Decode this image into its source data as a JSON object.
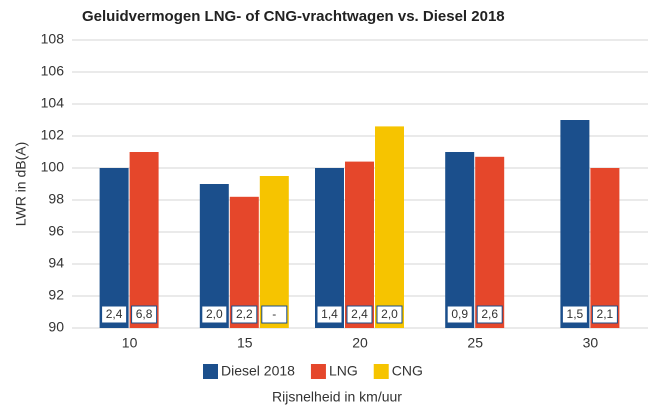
{
  "chart_data": {
    "type": "bar",
    "title": "Geluidvermogen LNG- of CNG-vrachtwagen vs. Diesel 2018",
    "y_label": "LWR in dB(A)",
    "x_label": "Rijsnelheid in km/uur",
    "categories": [
      "10",
      "15",
      "20",
      "25",
      "30"
    ],
    "series": [
      {
        "name": "Diesel 2018",
        "color": "#1b4f8c",
        "values": [
          100,
          99,
          100,
          101,
          103
        ],
        "box_labels": [
          "2,4",
          "2,0",
          "1,4",
          "0,9",
          "1,5"
        ]
      },
      {
        "name": "LNG",
        "color": "#e5472b",
        "values": [
          101,
          98.2,
          100.4,
          100.7,
          100
        ],
        "box_labels": [
          "6,8",
          "2,2",
          "2,4",
          "2,6",
          "2,1"
        ]
      },
      {
        "name": "CNG",
        "color": "#f6c400",
        "values": [
          null,
          99.5,
          102.6,
          null,
          null
        ],
        "box_labels": [
          null,
          "-",
          "2,0",
          null,
          null
        ]
      }
    ],
    "ylim": [
      90,
      108
    ],
    "yticks": [
      90,
      92,
      94,
      96,
      98,
      100,
      102,
      104,
      106,
      108
    ],
    "grid": true,
    "legend": "bottom"
  }
}
